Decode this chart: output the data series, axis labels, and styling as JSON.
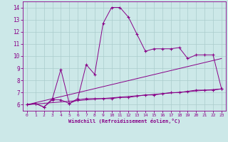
{
  "xlabel": "Windchill (Refroidissement éolien,°C)",
  "background_color": "#cce8e8",
  "grid_color": "#aacccc",
  "line_color": "#880088",
  "xlim": [
    -0.5,
    23.5
  ],
  "ylim": [
    5.5,
    14.5
  ],
  "xticks": [
    0,
    1,
    2,
    3,
    4,
    5,
    6,
    7,
    8,
    9,
    10,
    11,
    12,
    13,
    14,
    15,
    16,
    17,
    18,
    19,
    20,
    21,
    22,
    23
  ],
  "yticks": [
    6,
    7,
    8,
    9,
    10,
    11,
    12,
    13,
    14
  ],
  "series1_x": [
    0,
    1,
    2,
    3,
    4,
    5,
    6,
    7,
    8,
    9,
    10,
    11,
    12,
    13,
    14,
    15,
    16,
    17,
    18,
    19,
    20,
    21,
    22,
    23
  ],
  "series1_y": [
    6.0,
    6.1,
    5.8,
    6.5,
    8.9,
    6.1,
    6.5,
    9.3,
    8.5,
    12.7,
    14.0,
    14.0,
    13.2,
    11.8,
    10.4,
    10.6,
    10.6,
    10.6,
    10.7,
    9.8,
    10.1,
    10.1,
    10.1,
    7.3
  ],
  "series2_x": [
    0,
    1,
    2,
    3,
    4,
    5,
    6,
    7,
    8,
    9,
    10,
    11,
    12,
    13,
    14,
    15,
    16,
    17,
    18,
    19,
    20,
    21,
    22,
    23
  ],
  "series2_y": [
    6.0,
    6.1,
    5.8,
    6.4,
    6.4,
    6.1,
    6.4,
    6.5,
    6.5,
    6.5,
    6.5,
    6.6,
    6.6,
    6.7,
    6.8,
    6.8,
    6.9,
    7.0,
    7.0,
    7.1,
    7.2,
    7.2,
    7.2,
    7.3
  ],
  "series3_x": [
    0,
    23
  ],
  "series3_y": [
    6.0,
    7.3
  ],
  "series4_x": [
    0,
    23
  ],
  "series4_y": [
    6.0,
    9.8
  ]
}
